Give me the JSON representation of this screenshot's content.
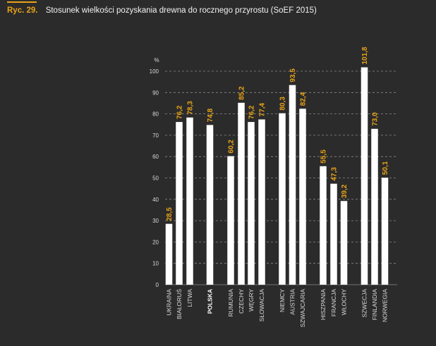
{
  "header": {
    "figure_label": "Ryc. 29.",
    "title": "Stosunek wielkości pozyskania drewna do rocznego przyrostu (SoEF 2015)"
  },
  "colors": {
    "background": "#2b2b2b",
    "bar": "#ffffff",
    "value_label": "#e8a317",
    "accent": "#e8a317",
    "axis_text": "#d9d9d9",
    "grid": "#8a8a8a"
  },
  "chart_data": {
    "type": "bar",
    "ylabel": "%",
    "ylim": [
      0,
      100
    ],
    "yticks": [
      0,
      10,
      20,
      30,
      40,
      50,
      60,
      70,
      80,
      90,
      100
    ],
    "grid": true,
    "grid_style": "dashed",
    "highlight_category": "POLSKA",
    "categories": [
      "UKRAINA",
      "BIAŁORUŚ",
      "LITWA",
      "POLSKA",
      "RUMUNIA",
      "CZECHY",
      "WĘGRY",
      "SŁOWACJA",
      "NIEMCY",
      "AUSTRIA",
      "SZWAJCARIA",
      "HISZPANIA",
      "FRANCJA",
      "WŁOCHY",
      "SZWECJA",
      "FINLANDIA",
      "NORWEGIA"
    ],
    "values": [
      28.5,
      76.2,
      78.3,
      74.8,
      60.2,
      85.2,
      76.2,
      77.4,
      80.3,
      93.5,
      82.4,
      55.5,
      47.3,
      39.2,
      101.8,
      73.0,
      50.1
    ],
    "value_labels": [
      "28,5",
      "76,2",
      "78,3",
      "74,8",
      "60,2",
      "85,2",
      "76,2",
      "77,4",
      "80,3",
      "93,5",
      "82,4",
      "55,5",
      "47,3",
      "39,2",
      "101,8",
      "73,0",
      "50,1"
    ]
  }
}
